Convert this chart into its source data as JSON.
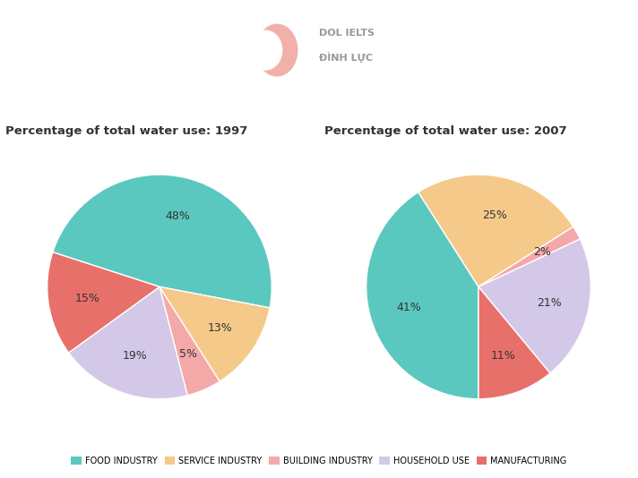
{
  "title_1997": "Percentage of total water use: 1997",
  "title_2007": "Percentage of total water use: 2007",
  "categories": [
    "FOOD INDUSTRY",
    "SERVICE INDUSTRY",
    "BUILDING INDUSTRY",
    "HOUSEHOLD USE",
    "MANUFACTURING"
  ],
  "colors": [
    "#5BC8C0",
    "#F5C98A",
    "#F5A8A8",
    "#D4C8E8",
    "#E8706A"
  ],
  "values_1997": [
    48,
    13,
    5,
    19,
    15
  ],
  "values_2007": [
    41,
    25,
    2,
    21,
    11
  ],
  "labels_1997": [
    "48%",
    "13%",
    "5%",
    "19%",
    "15%"
  ],
  "labels_2007": [
    "41%",
    "25%",
    "2%",
    "21%",
    "11%"
  ],
  "startangle_1997": 162,
  "startangle_2007": 270,
  "background_color": "#FFFFFF",
  "text_color": "#333333",
  "legend_labels": [
    "FOOD INDUSTRY",
    "SERVICE INDUSTRY",
    "BUILDING INDUSTRY",
    "HOUSEHOLD USE",
    "MANUFACTURING"
  ]
}
